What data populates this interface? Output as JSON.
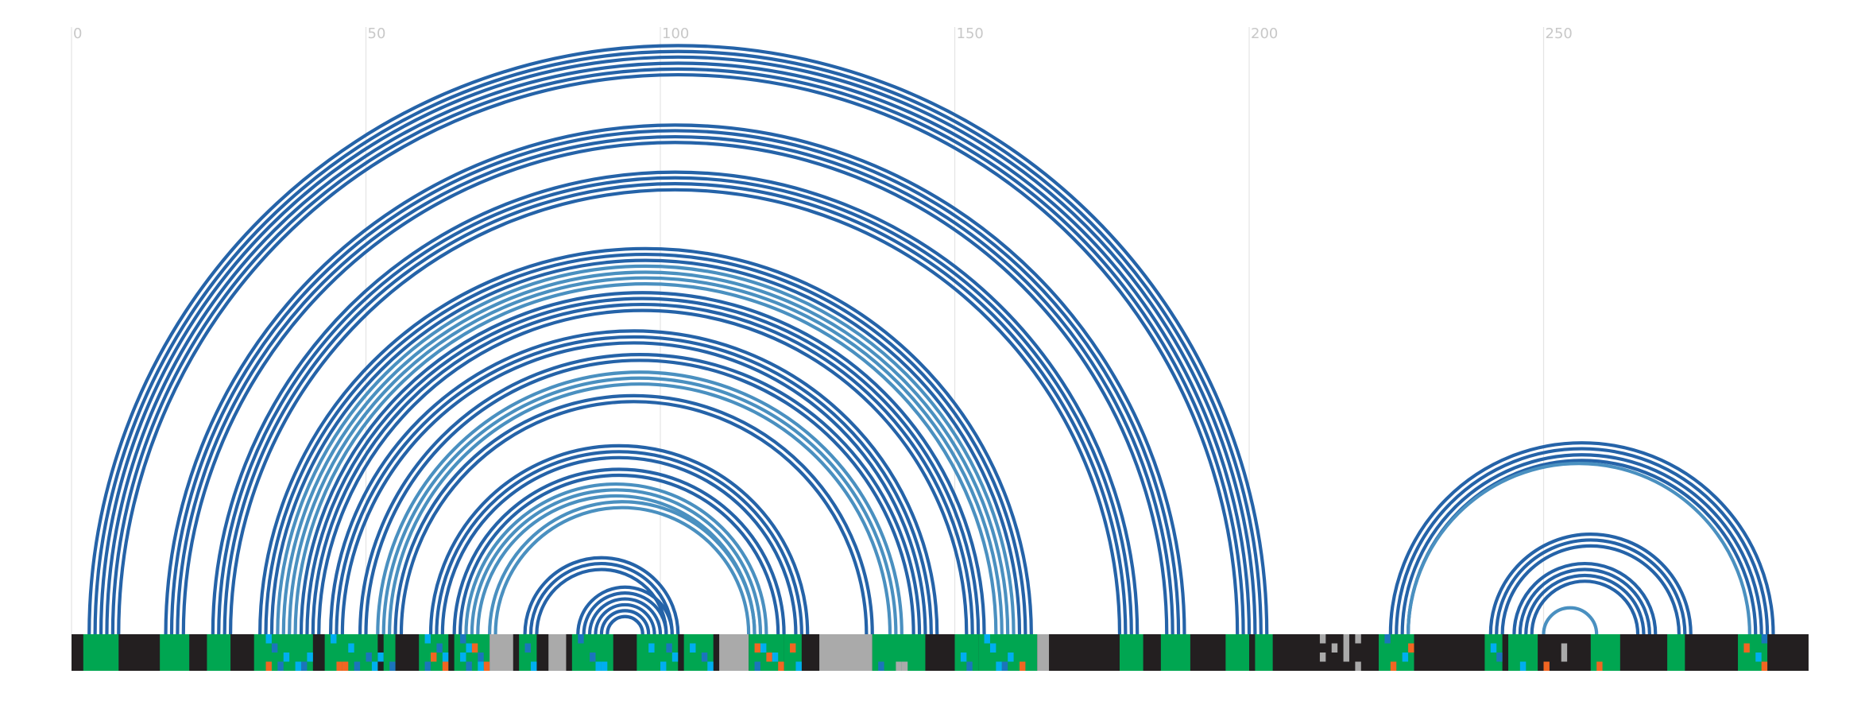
{
  "colors": {
    "arc_dark": "#2563a8",
    "arc_light": "#4a90c0",
    "track_dark": "#231f20",
    "track_green": "#00a651",
    "track_gray": "#aaaaaa",
    "track_blue": "#1b75bc",
    "track_cyan": "#00aeef",
    "track_orange": "#f26522",
    "gridline": "#e4e4e4",
    "tick_text": "#c8c8c8"
  },
  "chart_data": {
    "type": "arc-diagram",
    "x_range": [
      0,
      295
    ],
    "ticks": [
      {
        "value": 0,
        "label": "0"
      },
      {
        "value": 50,
        "label": "50"
      },
      {
        "value": 100,
        "label": "100"
      },
      {
        "value": 150,
        "label": "150"
      },
      {
        "value": 200,
        "label": "200"
      },
      {
        "value": 250,
        "label": "250"
      }
    ],
    "helices": [
      {
        "start": 3,
        "end": 203,
        "count": 6,
        "tone": "dark"
      },
      {
        "start": 16,
        "end": 189,
        "count": 4,
        "tone": "dark"
      },
      {
        "start": 24,
        "end": 181,
        "count": 4,
        "tone": "dark"
      },
      {
        "start": 32,
        "end": 163,
        "count": 3,
        "tone": "dark"
      },
      {
        "start": 35,
        "end": 160,
        "count": 4,
        "tone": "light"
      },
      {
        "start": 39,
        "end": 155,
        "count": 4,
        "tone": "dark"
      },
      {
        "start": 44,
        "end": 147,
        "count": 3,
        "tone": "dark"
      },
      {
        "start": 49,
        "end": 144,
        "count": 2,
        "tone": "dark"
      },
      {
        "start": 52,
        "end": 141,
        "count": 3,
        "tone": "light"
      },
      {
        "start": 55,
        "end": 136,
        "count": 2,
        "tone": "dark"
      },
      {
        "start": 61,
        "end": 125,
        "count": 3,
        "tone": "dark"
      },
      {
        "start": 65,
        "end": 121,
        "count": 2,
        "tone": "dark"
      },
      {
        "start": 67,
        "end": 118,
        "count": 3,
        "tone": "light"
      },
      {
        "start": 71,
        "end": 116,
        "count": 2,
        "tone": "light"
      },
      {
        "start": 77,
        "end": 103,
        "count": 3,
        "tone": "dark"
      },
      {
        "start": 86,
        "end": 102,
        "count": 6,
        "tone": "dark"
      },
      {
        "start": 224,
        "end": 289,
        "count": 4,
        "tone": "dark"
      },
      {
        "start": 227,
        "end": 285,
        "count": 1,
        "tone": "light"
      },
      {
        "start": 241,
        "end": 275,
        "count": 3,
        "tone": "dark"
      },
      {
        "start": 245,
        "end": 269,
        "count": 4,
        "tone": "dark"
      },
      {
        "start": 250,
        "end": 259,
        "count": 1,
        "tone": "light"
      }
    ],
    "track": {
      "rows": 4,
      "base": "dark",
      "segments": [
        {
          "start": 2,
          "end": 8,
          "color": "green"
        },
        {
          "start": 15,
          "end": 20,
          "color": "green"
        },
        {
          "start": 23,
          "end": 27,
          "color": "green"
        },
        {
          "start": 31,
          "end": 41,
          "color": "green"
        },
        {
          "start": 43,
          "end": 52,
          "color": "green"
        },
        {
          "start": 53,
          "end": 55,
          "color": "green"
        },
        {
          "start": 59,
          "end": 64,
          "color": "green"
        },
        {
          "start": 65,
          "end": 71,
          "color": "green"
        },
        {
          "start": 71,
          "end": 75,
          "color": "gray"
        },
        {
          "start": 76,
          "end": 79,
          "color": "green"
        },
        {
          "start": 81,
          "end": 84,
          "color": "gray"
        },
        {
          "start": 85,
          "end": 92,
          "color": "green"
        },
        {
          "start": 96,
          "end": 103,
          "color": "green"
        },
        {
          "start": 104,
          "end": 109,
          "color": "green"
        },
        {
          "start": 110,
          "end": 115,
          "color": "gray"
        },
        {
          "start": 115,
          "end": 121,
          "color": "green"
        },
        {
          "start": 121,
          "end": 124,
          "color": "green"
        },
        {
          "start": 127,
          "end": 136,
          "color": "gray"
        },
        {
          "start": 136,
          "end": 145,
          "color": "green"
        },
        {
          "start": 150,
          "end": 154,
          "color": "green"
        },
        {
          "start": 154,
          "end": 164,
          "color": "green"
        },
        {
          "start": 164,
          "end": 166,
          "color": "gray"
        },
        {
          "start": 178,
          "end": 182,
          "color": "green"
        },
        {
          "start": 185,
          "end": 190,
          "color": "green"
        },
        {
          "start": 196,
          "end": 200,
          "color": "green"
        },
        {
          "start": 201,
          "end": 204,
          "color": "green"
        },
        {
          "start": 222,
          "end": 228,
          "color": "green"
        },
        {
          "start": 240,
          "end": 243,
          "color": "green"
        },
        {
          "start": 244,
          "end": 249,
          "color": "green"
        },
        {
          "start": 258,
          "end": 263,
          "color": "green"
        },
        {
          "start": 271,
          "end": 274,
          "color": "green"
        },
        {
          "start": 283,
          "end": 288,
          "color": "green"
        }
      ],
      "cells": [
        {
          "x": 33,
          "row": 0,
          "color": "cyan"
        },
        {
          "x": 34,
          "row": 1,
          "color": "blue"
        },
        {
          "x": 36,
          "row": 2,
          "color": "cyan"
        },
        {
          "x": 33,
          "row": 3,
          "color": "orange"
        },
        {
          "x": 35,
          "row": 3,
          "color": "blue"
        },
        {
          "x": 38,
          "row": 3,
          "color": "cyan"
        },
        {
          "x": 40,
          "row": 2,
          "color": "cyan"
        },
        {
          "x": 39,
          "row": 3,
          "color": "blue"
        },
        {
          "x": 44,
          "row": 0,
          "color": "cyan"
        },
        {
          "x": 47,
          "row": 1,
          "color": "cyan"
        },
        {
          "x": 50,
          "row": 2,
          "color": "blue"
        },
        {
          "x": 52,
          "row": 2,
          "color": "cyan"
        },
        {
          "x": 45,
          "row": 3,
          "color": "orange"
        },
        {
          "x": 46,
          "row": 3,
          "color": "orange"
        },
        {
          "x": 48,
          "row": 3,
          "color": "blue"
        },
        {
          "x": 51,
          "row": 3,
          "color": "cyan"
        },
        {
          "x": 54,
          "row": 3,
          "color": "blue"
        },
        {
          "x": 60,
          "row": 0,
          "color": "cyan"
        },
        {
          "x": 62,
          "row": 1,
          "color": "blue"
        },
        {
          "x": 61,
          "row": 2,
          "color": "orange"
        },
        {
          "x": 63,
          "row": 2,
          "color": "cyan"
        },
        {
          "x": 60,
          "row": 3,
          "color": "blue"
        },
        {
          "x": 63,
          "row": 3,
          "color": "orange"
        },
        {
          "x": 66,
          "row": 0,
          "color": "blue"
        },
        {
          "x": 67,
          "row": 1,
          "color": "cyan"
        },
        {
          "x": 68,
          "row": 1,
          "color": "orange"
        },
        {
          "x": 69,
          "row": 2,
          "color": "blue"
        },
        {
          "x": 66,
          "row": 2,
          "color": "cyan"
        },
        {
          "x": 67,
          "row": 3,
          "color": "blue"
        },
        {
          "x": 70,
          "row": 3,
          "color": "orange"
        },
        {
          "x": 69,
          "row": 3,
          "color": "cyan"
        },
        {
          "x": 77,
          "row": 1,
          "color": "blue"
        },
        {
          "x": 78,
          "row": 3,
          "color": "cyan"
        },
        {
          "x": 86,
          "row": 0,
          "color": "blue"
        },
        {
          "x": 88,
          "row": 2,
          "color": "blue"
        },
        {
          "x": 89,
          "row": 3,
          "color": "cyan"
        },
        {
          "x": 90,
          "row": 3,
          "color": "cyan"
        },
        {
          "x": 98,
          "row": 1,
          "color": "cyan"
        },
        {
          "x": 101,
          "row": 1,
          "color": "blue"
        },
        {
          "x": 100,
          "row": 3,
          "color": "cyan"
        },
        {
          "x": 102,
          "row": 2,
          "color": "cyan"
        },
        {
          "x": 105,
          "row": 1,
          "color": "cyan"
        },
        {
          "x": 107,
          "row": 2,
          "color": "blue"
        },
        {
          "x": 108,
          "row": 3,
          "color": "cyan"
        },
        {
          "x": 116,
          "row": 1,
          "color": "orange"
        },
        {
          "x": 117,
          "row": 1,
          "color": "cyan"
        },
        {
          "x": 118,
          "row": 2,
          "color": "orange"
        },
        {
          "x": 119,
          "row": 2,
          "color": "cyan"
        },
        {
          "x": 116,
          "row": 3,
          "color": "blue"
        },
        {
          "x": 120,
          "row": 3,
          "color": "orange"
        },
        {
          "x": 122,
          "row": 1,
          "color": "orange"
        },
        {
          "x": 123,
          "row": 3,
          "color": "cyan"
        },
        {
          "x": 137,
          "row": 3,
          "color": "blue"
        },
        {
          "x": 140,
          "row": 3,
          "color": "gray"
        },
        {
          "x": 141,
          "row": 3,
          "color": "gray"
        },
        {
          "x": 151,
          "row": 2,
          "color": "cyan"
        },
        {
          "x": 155,
          "row": 0,
          "color": "cyan"
        },
        {
          "x": 156,
          "row": 1,
          "color": "cyan"
        },
        {
          "x": 157,
          "row": 3,
          "color": "cyan"
        },
        {
          "x": 158,
          "row": 3,
          "color": "blue"
        },
        {
          "x": 161,
          "row": 3,
          "color": "orange"
        },
        {
          "x": 159,
          "row": 2,
          "color": "cyan"
        },
        {
          "x": 152,
          "row": 3,
          "color": "blue"
        },
        {
          "x": 223,
          "row": 0,
          "color": "blue"
        },
        {
          "x": 227,
          "row": 1,
          "color": "orange"
        },
        {
          "x": 226,
          "row": 2,
          "color": "cyan"
        },
        {
          "x": 224,
          "row": 3,
          "color": "orange"
        },
        {
          "x": 241,
          "row": 1,
          "color": "cyan"
        },
        {
          "x": 242,
          "row": 2,
          "color": "blue"
        },
        {
          "x": 246,
          "row": 3,
          "color": "cyan"
        },
        {
          "x": 250,
          "row": 3,
          "color": "orange"
        },
        {
          "x": 253,
          "row": 1,
          "color": "gray"
        },
        {
          "x": 253,
          "row": 2,
          "color": "gray"
        },
        {
          "x": 259,
          "row": 3,
          "color": "orange"
        },
        {
          "x": 284,
          "row": 1,
          "color": "orange"
        },
        {
          "x": 287,
          "row": 0,
          "color": "blue"
        },
        {
          "x": 286,
          "row": 2,
          "color": "cyan"
        },
        {
          "x": 287,
          "row": 3,
          "color": "orange"
        },
        {
          "x": 212,
          "row": 0,
          "color": "gray"
        },
        {
          "x": 212,
          "row": 2,
          "color": "gray"
        },
        {
          "x": 216,
          "row": 0,
          "color": "gray"
        },
        {
          "x": 216,
          "row": 1,
          "color": "gray"
        },
        {
          "x": 216,
          "row": 2,
          "color": "gray"
        },
        {
          "x": 218,
          "row": 0,
          "color": "gray"
        },
        {
          "x": 218,
          "row": 3,
          "color": "gray"
        },
        {
          "x": 214,
          "row": 1,
          "color": "gray"
        }
      ]
    }
  }
}
